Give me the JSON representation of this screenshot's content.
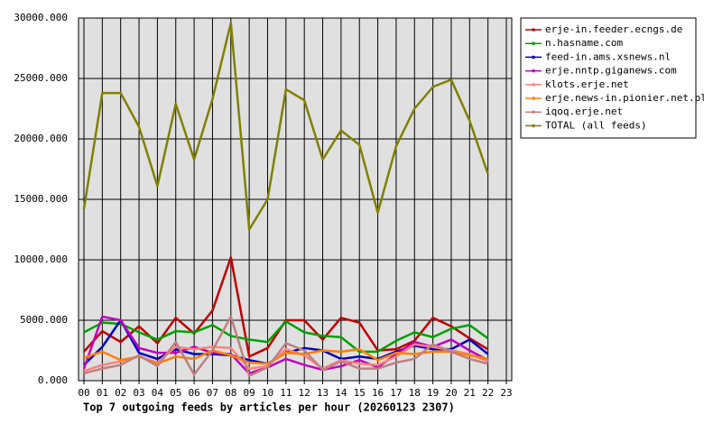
{
  "chart_data": {
    "type": "line",
    "title": "Top 7 outgoing feeds by articles per hour (20260123 2307)",
    "categories": [
      "00",
      "01",
      "02",
      "03",
      "04",
      "05",
      "06",
      "07",
      "08",
      "09",
      "10",
      "11",
      "12",
      "13",
      "14",
      "15",
      "16",
      "17",
      "18",
      "19",
      "20",
      "21",
      "22",
      "23"
    ],
    "ylim": [
      0,
      30000
    ],
    "yticks": [
      {
        "value": 0,
        "label": "0.000"
      },
      {
        "value": 5000,
        "label": "5000.000"
      },
      {
        "value": 10000,
        "label": "10000.000"
      },
      {
        "value": 15000,
        "label": "15000.000"
      },
      {
        "value": 20000,
        "label": "20000.000"
      },
      {
        "value": 25000,
        "label": "25000.000"
      },
      {
        "value": 30000,
        "label": "30000.000"
      }
    ],
    "grid": true,
    "legend": "right",
    "series": [
      {
        "name": "erje-in.feeder.ecngs.de",
        "color": "#c00000",
        "values": [
          2400,
          4100,
          3200,
          4500,
          3100,
          5200,
          3900,
          5800,
          10200,
          2000,
          2700,
          5000,
          5000,
          3400,
          5200,
          4800,
          2500,
          2600,
          3300,
          5200,
          4500,
          3500,
          2600,
          null
        ]
      },
      {
        "name": "n.hasname.com",
        "color": "#00a000",
        "values": [
          4000,
          4800,
          4700,
          4000,
          3400,
          4100,
          4000,
          4600,
          3700,
          3400,
          3200,
          4900,
          4000,
          3700,
          3600,
          2400,
          2400,
          3300,
          4000,
          3600,
          4300,
          4600,
          3500,
          null
        ]
      },
      {
        "name": "feed-in.ams.xsnews.nl",
        "color": "#0000c0",
        "values": [
          1300,
          2800,
          5000,
          2300,
          1800,
          2600,
          2200,
          2200,
          2100,
          1700,
          1400,
          2300,
          2700,
          2500,
          1800,
          2000,
          1800,
          2400,
          2900,
          2600,
          2600,
          3400,
          2200,
          null
        ]
      },
      {
        "name": "erje.nntp.giganews.com",
        "color": "#c000c0",
        "values": [
          1000,
          5300,
          5000,
          2700,
          2300,
          2300,
          2800,
          2300,
          2200,
          600,
          1100,
          1800,
          1300,
          900,
          1200,
          1700,
          1100,
          2200,
          3200,
          2800,
          3400,
          2500,
          1700,
          null
        ]
      },
      {
        "name": "klots.erje.net",
        "color": "#ff8080",
        "values": [
          800,
          1300,
          1600,
          2000,
          1500,
          2800,
          2600,
          2800,
          2700,
          1000,
          1200,
          2600,
          2100,
          1000,
          1700,
          1400,
          1300,
          2000,
          3000,
          2800,
          2500,
          2200,
          1600,
          null
        ]
      },
      {
        "name": "erje.news-in.pionier.net.pl",
        "color": "#ff8000",
        "values": [
          1900,
          2400,
          1700,
          2000,
          1400,
          2000,
          1800,
          2500,
          2100,
          1500,
          1400,
          2300,
          2200,
          2500,
          2400,
          2600,
          1700,
          2300,
          2200,
          2400,
          2400,
          2100,
          1800,
          null
        ]
      },
      {
        "name": "iqoq.erje.net",
        "color": "#c08080",
        "values": [
          600,
          1000,
          1300,
          2100,
          1200,
          3200,
          500,
          2500,
          5300,
          400,
          1100,
          3100,
          2500,
          900,
          1600,
          1000,
          1000,
          1500,
          1800,
          3000,
          2400,
          1800,
          1400,
          null
        ]
      },
      {
        "name": "TOTAL (all feeds)",
        "color": "#808000",
        "values": [
          14200,
          23800,
          23800,
          21000,
          16100,
          22900,
          18300,
          23300,
          29600,
          12500,
          15000,
          24100,
          23200,
          18300,
          20700,
          19500,
          13900,
          19400,
          22500,
          24300,
          24900,
          21500,
          17100,
          null
        ]
      }
    ]
  }
}
